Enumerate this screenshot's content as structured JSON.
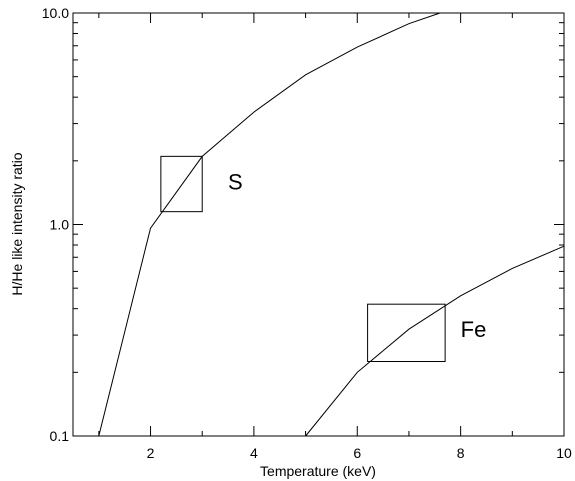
{
  "chart_data": {
    "type": "line",
    "xlabel": "Temperature (keV)",
    "ylabel": "H/He like intensity ratio",
    "xlim": [
      0.5,
      10
    ],
    "ylim": [
      0.1,
      10.0
    ],
    "yscale": "log",
    "x_ticks": [
      2,
      4,
      6,
      8,
      10
    ],
    "x_tick_labels": [
      "2",
      "4",
      "6",
      "8",
      "10"
    ],
    "y_ticks": [
      0.1,
      1.0,
      10.0
    ],
    "y_tick_labels": [
      "0.1",
      "1.0",
      "10.0"
    ],
    "grid": false,
    "series": [
      {
        "x": [
          1,
          2,
          3,
          4,
          5,
          6,
          7,
          7.6
        ],
        "y": [
          0.1,
          0.96,
          2.1,
          3.4,
          5.1,
          6.9,
          8.9,
          10.2
        ]
      },
      {
        "x": [
          5,
          6,
          7,
          8,
          9,
          10
        ],
        "y": [
          0.1,
          0.2,
          0.32,
          0.46,
          0.62,
          0.79
        ]
      }
    ],
    "annotations": [
      {
        "text": "S",
        "box_x": [
          2.2,
          3.0
        ],
        "box_y": [
          1.15,
          2.1
        ],
        "label_x": 3.5,
        "label_y": 1.6
      },
      {
        "text": "Fe",
        "box_x": [
          6.2,
          7.7
        ],
        "box_y": [
          0.225,
          0.42
        ],
        "label_x": 8.0,
        "label_y": 0.32
      }
    ]
  }
}
